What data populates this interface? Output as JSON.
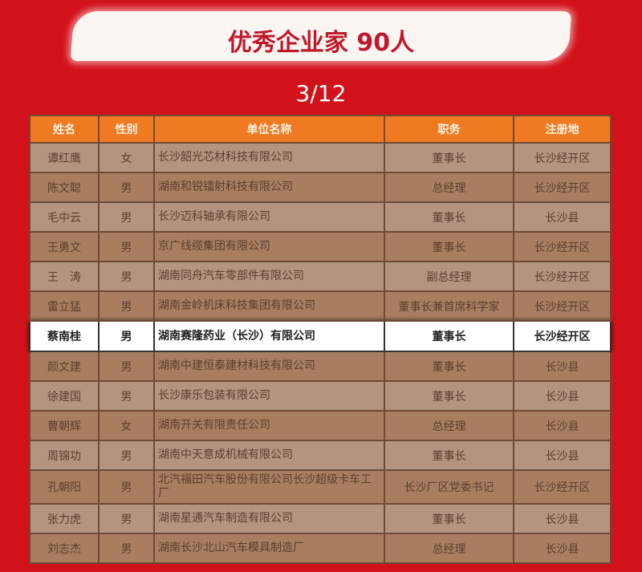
{
  "title": "优秀企业家 90人",
  "page_indicator": "3/12",
  "columns": [
    "姓名",
    "性别",
    "单位名称",
    "职务",
    "注册地"
  ],
  "rows": [
    [
      "谭红鹰",
      "女",
      "长沙韶光芯材科技有限公司",
      "董事长",
      "长沙经开区"
    ],
    [
      "陈文聪",
      "男",
      "湖南和锐镭射科技有限公司",
      "总经理",
      "长沙经开区"
    ],
    [
      "毛中云",
      "男",
      "长沙迈科轴承有限公司",
      "董事长",
      "长沙县"
    ],
    [
      "王勇文",
      "男",
      "京广线缆集团有限公司",
      "董事长",
      "长沙经开区"
    ],
    [
      "王　涛",
      "男",
      "湖南同舟汽车零部件有限公司",
      "副总经理",
      "长沙经开区"
    ],
    [
      "雷立猛",
      "男",
      "湖南金岭机床科技集团有限公司",
      "董事长兼首席科学家",
      "长沙经开区"
    ],
    [
      "蔡南桂",
      "男",
      "湖南赛隆药业（长沙）有限公司",
      "董事长",
      "长沙经开区"
    ],
    [
      "颜文建",
      "男",
      "湖南中建恒泰建材科技有限公司",
      "董事长",
      "长沙县"
    ],
    [
      "徐建国",
      "男",
      "长沙康乐包装有限公司",
      "董事长",
      "长沙县"
    ],
    [
      "曹朝辉",
      "女",
      "湖南开关有限责任公司",
      "总经理",
      "长沙县"
    ],
    [
      "周锦功",
      "男",
      "湖南中天意成机械有限公司",
      "董事长",
      "长沙县"
    ],
    [
      "孔朝阳",
      "男",
      "北汽福田汽车股份有限公司长沙超级卡车工厂",
      "长沙厂区党委书记",
      "长沙经开区"
    ],
    [
      "张力虎",
      "男",
      "湖南星通汽车制造有限公司",
      "董事长",
      "长沙县"
    ],
    [
      "刘志杰",
      "男",
      "湖南长沙北山汽车模具制造厂",
      "总经理",
      "长沙县"
    ]
  ],
  "highlighted_row": 6
}
